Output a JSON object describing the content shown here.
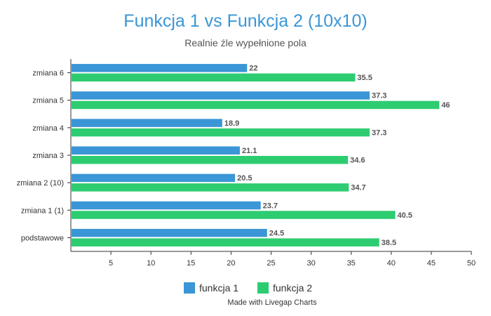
{
  "chart_data": {
    "type": "bar",
    "orientation": "horizontal",
    "title": "Funkcja 1 vs Funkcja 2 (10x10)",
    "subtitle": "Realnie źle wypełnione pola",
    "categories": [
      "zmiana 6",
      "zmiana 5",
      "zmiana 4",
      "zmiana 3",
      "zmiana 2 (10)",
      "zmiana 1 (1)",
      "podstawowe"
    ],
    "series": [
      {
        "name": "funkcja 1",
        "color": "#3a96d6",
        "values": [
          22,
          37.3,
          18.9,
          21.1,
          20.5,
          23.7,
          24.5
        ]
      },
      {
        "name": "funkcja 2",
        "color": "#2ecc71",
        "values": [
          35.5,
          46,
          37.3,
          34.6,
          34.7,
          40.5,
          38.5
        ]
      }
    ],
    "xlim": [
      0,
      50
    ],
    "xticks": [
      5,
      10,
      15,
      20,
      25,
      30,
      35,
      40,
      45,
      50
    ],
    "grid": false,
    "legend_position": "bottom-center",
    "xlabel": "",
    "ylabel": ""
  },
  "credit": "Made with Livegap Charts"
}
